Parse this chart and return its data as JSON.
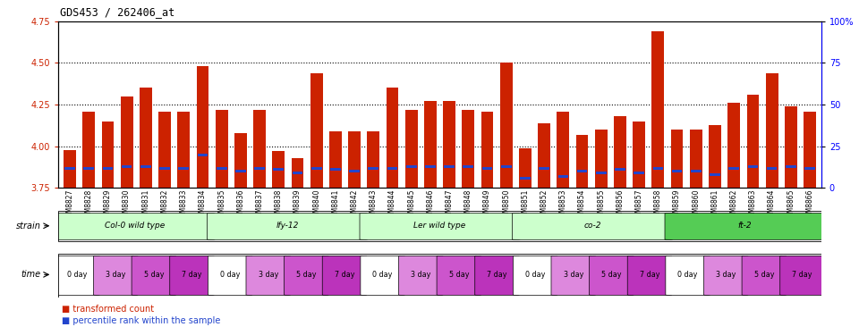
{
  "title": "GDS453 / 262406_at",
  "xlabels": [
    "GSM8827",
    "GSM8828",
    "GSM8829",
    "GSM8830",
    "GSM8831",
    "GSM8832",
    "GSM8833",
    "GSM8834",
    "GSM8835",
    "GSM8836",
    "GSM8837",
    "GSM8838",
    "GSM8839",
    "GSM8840",
    "GSM8841",
    "GSM8842",
    "GSM8843",
    "GSM8844",
    "GSM8845",
    "GSM8846",
    "GSM8847",
    "GSM8848",
    "GSM8849",
    "GSM8850",
    "GSM8851",
    "GSM8852",
    "GSM8853",
    "GSM8854",
    "GSM8855",
    "GSM8856",
    "GSM8857",
    "GSM8858",
    "GSM8859",
    "GSM8860",
    "GSM8861",
    "GSM8862",
    "GSM8863",
    "GSM8864",
    "GSM8865",
    "GSM8866"
  ],
  "red_values": [
    3.98,
    4.21,
    4.15,
    4.3,
    4.35,
    4.21,
    4.21,
    4.48,
    4.22,
    4.08,
    4.22,
    3.97,
    3.93,
    4.44,
    4.09,
    4.09,
    4.09,
    4.35,
    4.22,
    4.27,
    4.27,
    4.22,
    4.21,
    4.5,
    3.99,
    4.14,
    4.21,
    4.07,
    4.1,
    4.18,
    4.15,
    4.69,
    4.1,
    4.1,
    4.13,
    4.26,
    4.31,
    4.44,
    4.24,
    4.21
  ],
  "blue_values": [
    3.87,
    3.87,
    3.87,
    3.88,
    3.88,
    3.87,
    3.87,
    3.95,
    3.87,
    3.85,
    3.87,
    3.86,
    3.84,
    3.87,
    3.86,
    3.85,
    3.87,
    3.87,
    3.88,
    3.88,
    3.88,
    3.88,
    3.87,
    3.88,
    3.81,
    3.87,
    3.82,
    3.85,
    3.84,
    3.86,
    3.84,
    3.87,
    3.85,
    3.85,
    3.83,
    3.87,
    3.88,
    3.87,
    3.88,
    3.87
  ],
  "ylim_left": [
    3.75,
    4.75
  ],
  "ylim_right": [
    0,
    100
  ],
  "yticks_left": [
    3.75,
    4.0,
    4.25,
    4.5,
    4.75
  ],
  "yticks_right": [
    0,
    25,
    50,
    75,
    100
  ],
  "ytick_labels_right": [
    "0",
    "25",
    "50",
    "75",
    "100%"
  ],
  "grid_values": [
    4.0,
    4.25,
    4.5
  ],
  "strains": [
    {
      "label": "Col-0 wild type",
      "start": 0,
      "end": 8,
      "color": "#ccffcc"
    },
    {
      "label": "lfy-12",
      "start": 8,
      "end": 16,
      "color": "#ccffcc"
    },
    {
      "label": "Ler wild type",
      "start": 16,
      "end": 24,
      "color": "#ccffcc"
    },
    {
      "label": "co-2",
      "start": 24,
      "end": 32,
      "color": "#ccffcc"
    },
    {
      "label": "ft-2",
      "start": 32,
      "end": 40,
      "color": "#55cc55"
    }
  ],
  "time_labels": [
    "0 day",
    "3 day",
    "5 day",
    "7 day"
  ],
  "time_colors": [
    "#ffffff",
    "#dd88dd",
    "#cc55cc",
    "#bb33bb"
  ],
  "bar_color": "#cc2200",
  "blue_color": "#2244cc",
  "background_color": "#ffffff",
  "bar_width": 0.65,
  "baseline": 3.75
}
